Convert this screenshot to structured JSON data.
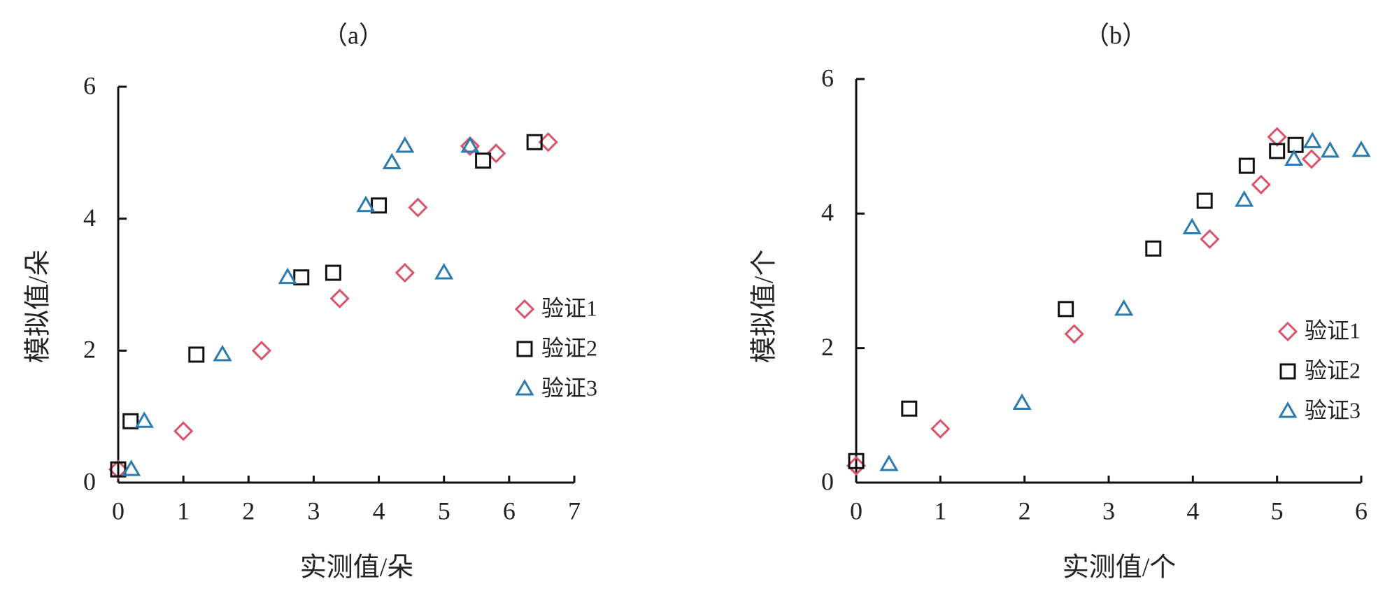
{
  "chart_data": [
    {
      "type": "scatter",
      "title": "（a）",
      "x_label": "实测值/朵",
      "y_label": "模拟值/朵",
      "xlim": [
        0,
        7
      ],
      "ylim": [
        0,
        6
      ],
      "xticks": [
        0,
        1,
        2,
        3,
        4,
        5,
        6,
        7
      ],
      "yticks": [
        0,
        2,
        4,
        6
      ],
      "legend": "right",
      "series": [
        {
          "name": "验证1",
          "color": "#d9546b",
          "marker": "diamond",
          "x": [
            0,
            1,
            2.2,
            3.4,
            4.4,
            4.6,
            5.4,
            5.8,
            6.6
          ],
          "values": [
            0.2,
            0.78,
            2.0,
            2.79,
            3.18,
            4.17,
            5.1,
            4.99,
            5.16
          ]
        },
        {
          "name": "验证2",
          "color": "#111111",
          "marker": "square",
          "x": [
            0,
            0.19,
            1.2,
            2.81,
            3.3,
            4.0,
            5.6,
            6.39
          ],
          "values": [
            0.2,
            0.93,
            1.94,
            3.11,
            3.18,
            4.2,
            4.88,
            5.16
          ]
        },
        {
          "name": "验证3",
          "color": "#2b7bb0",
          "marker": "triangle",
          "x": [
            0.2,
            0.4,
            1.6,
            2.6,
            3.8,
            4.2,
            4.4,
            5.0,
            5.4
          ],
          "values": [
            0.2,
            0.93,
            1.94,
            3.11,
            4.2,
            4.85,
            5.1,
            3.18,
            5.1
          ]
        }
      ]
    },
    {
      "type": "scatter",
      "title": "（b）",
      "x_label": "实测值/个",
      "y_label": "模拟值/个",
      "xlim": [
        0,
        6
      ],
      "ylim": [
        0,
        6
      ],
      "xticks": [
        0,
        1,
        2,
        3,
        4,
        5,
        6
      ],
      "yticks": [
        0,
        2,
        4,
        6
      ],
      "legend": "right",
      "series": [
        {
          "name": "验证1",
          "color": "#d9546b",
          "marker": "diamond",
          "x": [
            0,
            1,
            2.59,
            4.2,
            4.81,
            5.0,
            5.41
          ],
          "values": [
            0.25,
            0.8,
            2.21,
            3.62,
            4.43,
            5.14,
            4.81
          ]
        },
        {
          "name": "验证2",
          "color": "#111111",
          "marker": "square",
          "x": [
            0,
            0.63,
            2.49,
            3.53,
            4.14,
            4.64,
            5.0,
            5.22
          ],
          "values": [
            0.32,
            1.1,
            2.58,
            3.48,
            4.19,
            4.71,
            4.93,
            5.02
          ]
        },
        {
          "name": "验证3",
          "color": "#2b7bb0",
          "marker": "triangle",
          "x": [
            0.39,
            1.97,
            3.18,
            3.99,
            4.61,
            5.2,
            5.42,
            5.63,
            6.0
          ],
          "values": [
            0.27,
            1.18,
            2.58,
            3.79,
            4.2,
            4.81,
            5.07,
            4.93,
            4.94
          ]
        }
      ]
    }
  ]
}
